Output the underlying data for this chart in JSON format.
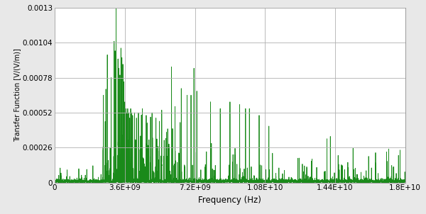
{
  "title": "",
  "xlabel": "Frequency (Hz)",
  "ylabel": "Transfer Function [V/(V/m)]",
  "xlim": [
    0,
    18000000000.0
  ],
  "ylim": [
    0,
    0.0013
  ],
  "yticks": [
    0,
    0.00026,
    0.00052,
    0.00078,
    0.00104,
    0.0013
  ],
  "xticks": [
    0,
    3600000000.0,
    7200000000.0,
    10800000000.0,
    14400000000.0,
    18000000000.0
  ],
  "xtick_labels": [
    "0",
    "3.6E+09",
    "7.2E+09",
    "1.08E+10",
    "1.44E+10",
    "1.8E+10"
  ],
  "ytick_labels": [
    "0",
    "0.00026",
    "0.00052",
    "0.00078",
    "0.00104",
    "0.0013"
  ],
  "line_color": "#1a8a1a",
  "bg_color": "#e8e8e8",
  "plot_bg_color": "#ffffff",
  "grid_color": "#b0b0b0",
  "freq_max": 18000000000.0,
  "n_points": 5000
}
